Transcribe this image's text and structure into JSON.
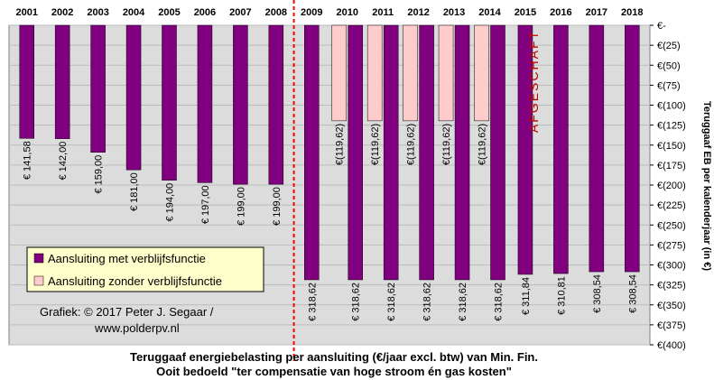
{
  "chart_data": {
    "type": "bar",
    "categories": [
      "2001",
      "2002",
      "2003",
      "2004",
      "2005",
      "2006",
      "2007",
      "2008",
      "2009",
      "2010",
      "2011",
      "2012",
      "2013",
      "2014",
      "2015",
      "2016",
      "2017",
      "2018"
    ],
    "series": [
      {
        "name": "Aansluiting met verblijfsfunctie",
        "color": "#800080",
        "values": [
          -141.58,
          -142.0,
          -159.0,
          -181.0,
          -194.0,
          -197.0,
          -199.0,
          -199.0,
          -318.62,
          -318.62,
          -318.62,
          -318.62,
          -318.62,
          -318.62,
          -311.84,
          -310.81,
          -308.54,
          -308.54
        ],
        "labels": [
          "€ 141,58",
          "€ 142,00",
          "€ 159,00",
          "€ 181,00",
          "€ 194,00",
          "€ 197,00",
          "€ 199,00",
          "€ 199,00",
          "€ 318,62",
          "€ 318,62",
          "€ 318,62",
          "€ 318,62",
          "€ 318,62",
          "€ 318,62",
          "€ 311,84",
          "€ 310,81",
          "€ 308,54",
          "€ 308,54"
        ]
      },
      {
        "name": "Aansluiting zonder verblijfsfunctie",
        "color": "#ffcccc",
        "values": [
          null,
          null,
          null,
          null,
          null,
          null,
          null,
          null,
          null,
          -119.62,
          -119.62,
          -119.62,
          -119.62,
          -119.62,
          null,
          null,
          null,
          null
        ],
        "labels": [
          "",
          "",
          "",
          "",
          "",
          "",
          "",
          "",
          "",
          "€(119,62)",
          "€(119,62)",
          "€(119,62)",
          "€(119,62)",
          "€(119,62)",
          "",
          "",
          "",
          ""
        ]
      }
    ],
    "ylim": [
      -400,
      0
    ],
    "yticks": [
      0,
      -25,
      -50,
      -75,
      -100,
      -125,
      -150,
      -175,
      -200,
      -225,
      -250,
      -275,
      -300,
      -325,
      -350,
      -375,
      -400
    ],
    "ytick_labels": [
      "€-",
      "€(25)",
      "€(50)",
      "€(75)",
      "€(100)",
      "€(125)",
      "€(150)",
      "€(175)",
      "€(200)",
      "€(225)",
      "€(250)",
      "€(275)",
      "€(300)",
      "€(325)",
      "€(350)",
      "€(375)",
      "€(400)"
    ],
    "ylabel": "Teruggaaf EB per kalenderjaar (in €)",
    "annotation": "AFGESCHAFT",
    "title_lines": [
      "Teruggaaf energiebelasting  per aansluiting (€/jaar excl. btw)  van Min.  Fin.",
      "Ooit bedoeld \"ter compensatie van hoge stroom én gas kosten\""
    ],
    "credit_lines": [
      "Grafiek:  © 2017 Peter J. Segaar /",
      "www.polderpv.nl"
    ],
    "legend_position": "lower-left",
    "grid": true,
    "plot_background": "#dcdcdc",
    "divider_color": "#ff0000"
  }
}
